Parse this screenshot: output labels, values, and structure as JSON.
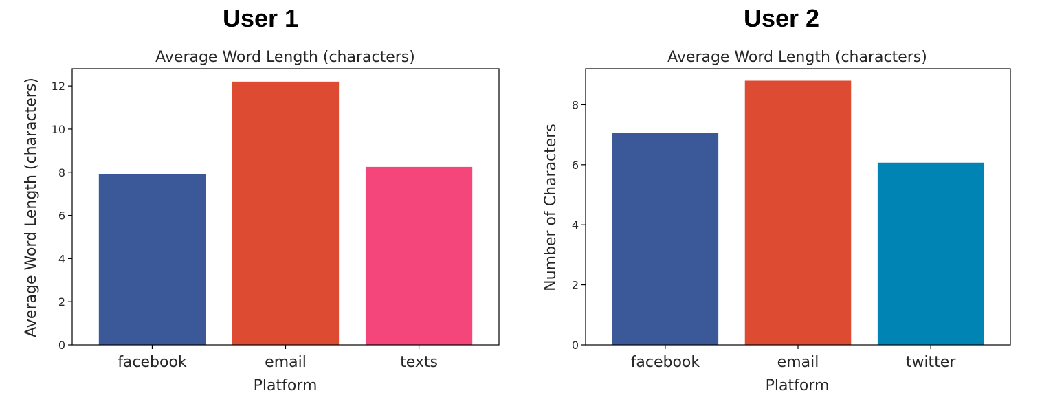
{
  "chart_data": [
    {
      "type": "bar",
      "heading": "User 1",
      "title": "Average Word Length (characters)",
      "xlabel": "Platform",
      "ylabel": "Average Word Length (characters)",
      "categories": [
        "facebook",
        "email",
        "texts"
      ],
      "values": [
        7.9,
        12.2,
        8.25
      ],
      "colors": [
        "#3b5998",
        "#dd4b32",
        "#f5467c"
      ],
      "ylim": [
        0,
        12.8
      ],
      "yticks": [
        0,
        2,
        4,
        6,
        8,
        10,
        12
      ],
      "grid": false,
      "legend": "none"
    },
    {
      "type": "bar",
      "heading": "User 2",
      "title": "Average Word Length (characters)",
      "xlabel": "Platform",
      "ylabel": "Number of Characters",
      "categories": [
        "facebook",
        "email",
        "twitter"
      ],
      "values": [
        7.05,
        8.8,
        6.07
      ],
      "colors": [
        "#3b5998",
        "#dd4b32",
        "#0084b4"
      ],
      "ylim": [
        0,
        9.2
      ],
      "yticks": [
        0,
        2,
        4,
        6,
        8
      ],
      "grid": false,
      "legend": "none"
    }
  ]
}
